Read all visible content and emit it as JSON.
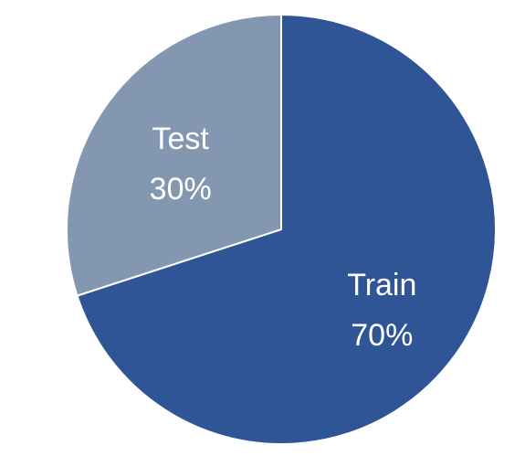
{
  "chart_data": {
    "type": "pie",
    "start": "12 o'clock",
    "direction": "clockwise",
    "slices": [
      {
        "label": "Train",
        "value": 70,
        "value_label": "70%",
        "color": "#2f5597"
      },
      {
        "label": "Test",
        "value": 30,
        "value_label": "30%",
        "color": "#8497b0"
      }
    ],
    "slice_border_color": "#ffffff",
    "legend": "none",
    "title": ""
  }
}
